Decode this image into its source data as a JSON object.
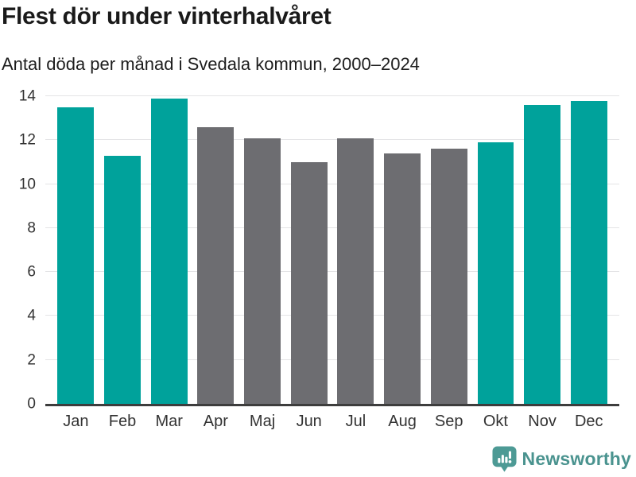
{
  "header": {
    "title": "Flest dör under vinterhalvåret",
    "subtitle": "Antal döda per månad i Svedala kommun, 2000–2024"
  },
  "chart_data": {
    "type": "bar",
    "title": "Flest dör under vinterhalvåret",
    "subtitle": "Antal döda per månad i Svedala kommun, 2000–2024",
    "categories": [
      "Jan",
      "Feb",
      "Mar",
      "Apr",
      "Maj",
      "Jun",
      "Jul",
      "Aug",
      "Sep",
      "Okt",
      "Nov",
      "Dec"
    ],
    "values": [
      13.5,
      11.3,
      13.9,
      12.6,
      12.1,
      11.0,
      12.1,
      11.4,
      11.6,
      11.9,
      13.6,
      13.8
    ],
    "highlighted": [
      true,
      true,
      true,
      false,
      false,
      false,
      false,
      false,
      false,
      true,
      true,
      true
    ],
    "colors": {
      "highlight": "#00a29b",
      "muted": "#6d6d71",
      "gridline": "#e4e4e6",
      "axis_line": "#3d3d3d",
      "tick_label": "#333333"
    },
    "xlabel": "",
    "ylabel": "",
    "ylim": [
      0,
      14
    ],
    "yticks": [
      0,
      2,
      4,
      6,
      8,
      10,
      12,
      14
    ],
    "grid": true,
    "legend_position": "none"
  },
  "footer": {
    "brand": "Newsworthy",
    "brand_color": "#4a938f",
    "icon": "speech-bubble-bar-chart-icon"
  }
}
